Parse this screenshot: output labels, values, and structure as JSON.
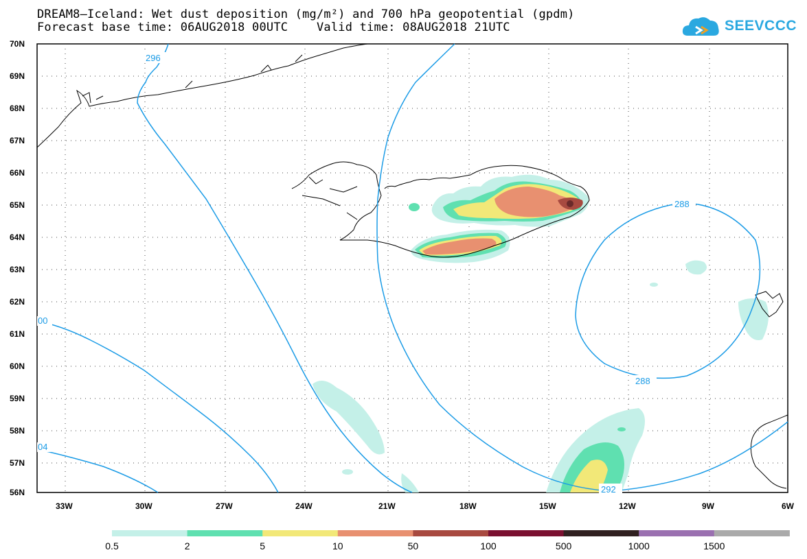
{
  "title_line1": "DREAM8–Iceland: Wet dust deposition (mg/m²) and 700 hPa geopotential (gpdm)",
  "title_line2": "Forecast base time: 06AUG2018 00UTC    Valid time: 08AUG2018 21UTC",
  "logo_text": "SEEVCCC",
  "lat_labels": [
    "70N",
    "69N",
    "68N",
    "67N",
    "66N",
    "65N",
    "64N",
    "63N",
    "62N",
    "61N",
    "60N",
    "59N",
    "58N",
    "57N",
    "56N"
  ],
  "lon_labels": [
    "33W",
    "30W",
    "27W",
    "24W",
    "21W",
    "18W",
    "15W",
    "12W",
    "9W",
    "6W"
  ],
  "contour_labels": {
    "c296": "296",
    "c288a": "288",
    "c288b": "288",
    "c292": "292",
    "c300": "00",
    "c304": "04"
  },
  "colorbar": {
    "colors": [
      "#c4f0e8",
      "#5fe0b0",
      "#f2e878",
      "#e89070",
      "#a84a40",
      "#7a1030",
      "#302020",
      "#9a70b0",
      "#aaaaaa"
    ],
    "labels": [
      "0.5",
      "2",
      "5",
      "10",
      "50",
      "100",
      "500",
      "1000",
      "1500"
    ]
  },
  "colors": {
    "contour": "#1a9be6",
    "coast": "#000000"
  }
}
